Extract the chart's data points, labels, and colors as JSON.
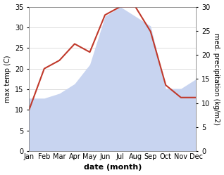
{
  "months": [
    "Jan",
    "Feb",
    "Mar",
    "Apr",
    "May",
    "Jun",
    "Jul",
    "Aug",
    "Sep",
    "Oct",
    "Nov",
    "Dec"
  ],
  "temp": [
    10,
    20,
    22,
    26,
    24,
    33,
    35,
    35,
    29,
    16,
    13,
    13
  ],
  "precip": [
    11,
    11,
    12,
    14,
    18,
    28,
    30,
    28,
    26,
    13,
    13,
    15
  ],
  "temp_color": "#c0392b",
  "precip_fill_color": "#c8d4f0",
  "ylabel_left": "max temp (C)",
  "ylabel_right": "med. precipitation (kg/m2)",
  "xlabel": "date (month)",
  "ylim_left": [
    0,
    35
  ],
  "ylim_right": [
    0,
    30
  ],
  "yticks_left": [
    0,
    5,
    10,
    15,
    20,
    25,
    30,
    35
  ],
  "yticks_right": [
    0,
    5,
    10,
    15,
    20,
    25,
    30
  ],
  "bg_color": "#ffffff",
  "grid_color": "#d0d0d0"
}
